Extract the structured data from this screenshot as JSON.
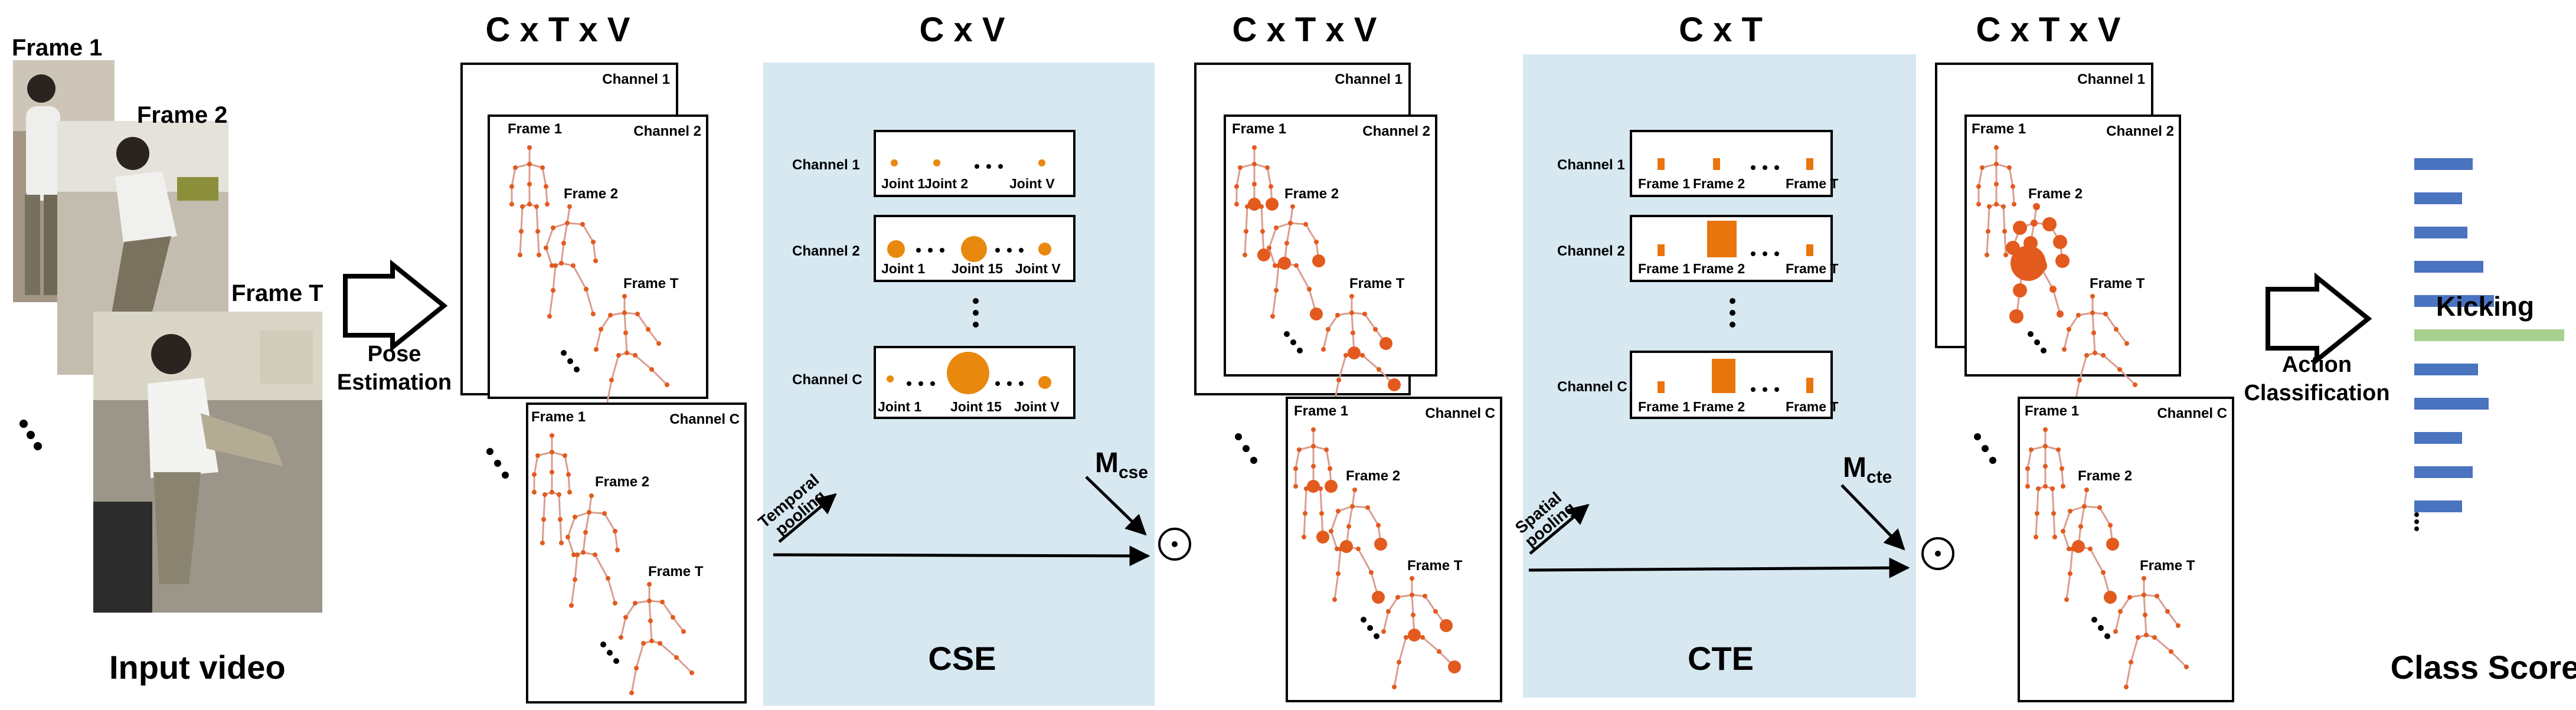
{
  "video": {
    "frame_1": "Frame 1",
    "frame_2": "Frame 2",
    "frame_t": "Frame T",
    "caption": "Input video"
  },
  "pose_estimation": {
    "line1": "Pose",
    "line2": "Estimation"
  },
  "stack1": {
    "header": "C x T x V",
    "channel_1": "Channel 1",
    "channel_2": "Channel 2",
    "channel_c": "Channel C",
    "frame_1": "Frame 1",
    "frame_2": "Frame 2",
    "frame_t": "Frame T"
  },
  "cse": {
    "header": "C  x V",
    "caption": "CSE",
    "channel_1": "Channel 1",
    "channel_2": "Channel 2",
    "channel_c": "Channel C",
    "joint_1": "Joint 1",
    "joint_2": "Joint 2",
    "joint_15": "Joint 15",
    "joint_v": "Joint V",
    "pooling_line1": "Temporal",
    "pooling_line2": "pooling",
    "matrix_base": "M",
    "matrix_sub": "cse",
    "odot": "⊙"
  },
  "stack2": {
    "header": "C x T x V",
    "channel_1": "Channel 1",
    "channel_2": "Channel 2",
    "channel_c": "Channel C",
    "frame_1": "Frame 1",
    "frame_2": "Frame 2",
    "frame_t": "Frame T"
  },
  "cte": {
    "header": "C  x T",
    "caption": "CTE",
    "channel_1": "Channel 1",
    "channel_2": "Channel 2",
    "channel_c": "Channel C",
    "frame_1": "Frame 1",
    "frame_2": "Frame 2",
    "frame_t": "Frame T",
    "pooling_line1": "Spatial",
    "pooling_line2": "pooling",
    "matrix_base": "M",
    "matrix_sub": "cte",
    "odot": "⊙"
  },
  "stack3": {
    "header": "C x T x V",
    "channel_1": "Channel 1",
    "channel_2": "Channel 2",
    "channel_c": "Channel C",
    "frame_1": "Frame 1",
    "frame_2": "Frame 2",
    "frame_t": "Frame T"
  },
  "action_classification": {
    "line1": "Action",
    "line2": "Classification"
  },
  "class_score": {
    "caption": "Class Score",
    "top_label": "Kicking",
    "scores": [
      0.55,
      0.45,
      0.5,
      0.65,
      0.75,
      1.0,
      0.6,
      0.7,
      0.45,
      0.55,
      0.45
    ],
    "highlight_index": 5
  },
  "colors": {
    "panel_bg": "#d7e8f1",
    "joint": "#e35a1e",
    "bone": "#d99e8f",
    "bar": "#4a73c0",
    "highlight": "#a7d08f"
  }
}
